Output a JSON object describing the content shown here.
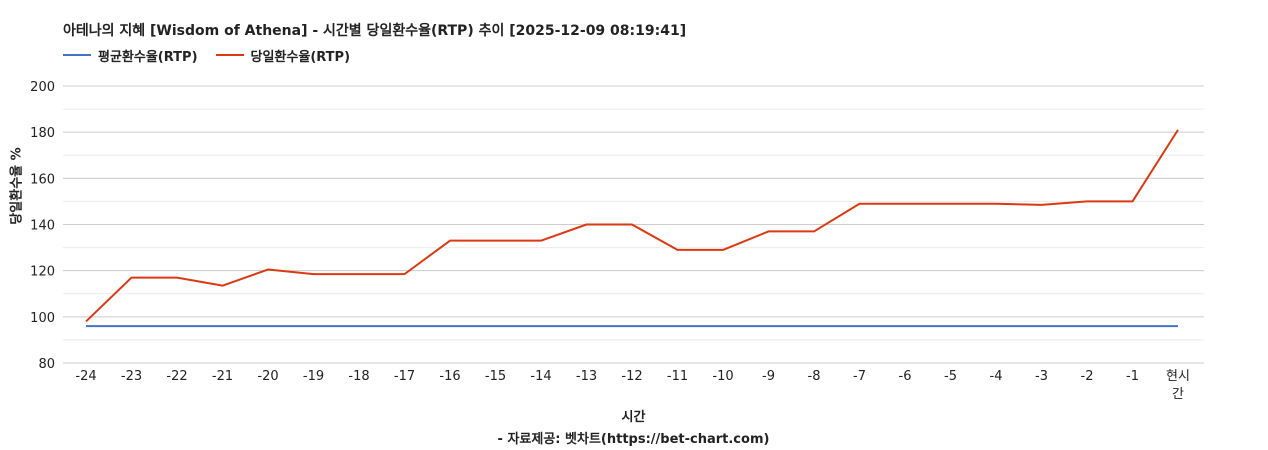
{
  "chart_data": {
    "type": "line",
    "title": "아테나의 지혜 [Wisdom of Athena] - 시간별 당일환수율(RTP) 추이 [2025-12-09 08:19:41]",
    "xlabel": "시간",
    "ylabel": "당일환수율 %",
    "source": "- 자료제공: 벳차트(https://bet-chart.com)",
    "categories": [
      "-24",
      "-23",
      "-22",
      "-21",
      "-20",
      "-19",
      "-18",
      "-17",
      "-16",
      "-15",
      "-14",
      "-13",
      "-12",
      "-11",
      "-10",
      "-9",
      "-8",
      "-7",
      "-6",
      "-5",
      "-4",
      "-3",
      "-2",
      "-1",
      "현시간"
    ],
    "yticks": [
      80,
      100,
      120,
      140,
      160,
      180,
      200
    ],
    "ylim": [
      80,
      200
    ],
    "grid": true,
    "legend_position": "top-left",
    "series": [
      {
        "name": "평균환수율(RTP)",
        "color": "#4472c4",
        "values": [
          96,
          96,
          96,
          96,
          96,
          96,
          96,
          96,
          96,
          96,
          96,
          96,
          96,
          96,
          96,
          96,
          96,
          96,
          96,
          96,
          96,
          96,
          96,
          96,
          96
        ]
      },
      {
        "name": "당일환수율(RTP)",
        "color": "#dc3912",
        "values": [
          98,
          117,
          117,
          113.5,
          120.5,
          118.5,
          118.5,
          118.5,
          133,
          133,
          133,
          140,
          140,
          129,
          129,
          137,
          137,
          149,
          149,
          149,
          149,
          148.5,
          150,
          150,
          181
        ]
      }
    ]
  }
}
